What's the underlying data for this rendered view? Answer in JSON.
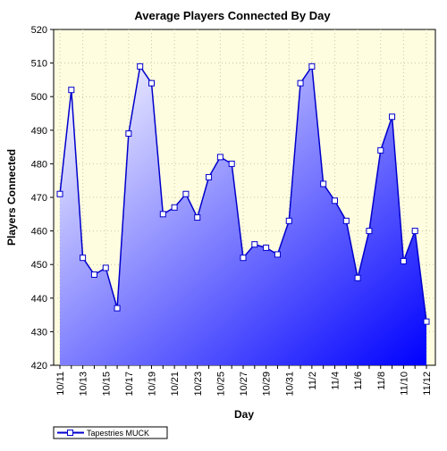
{
  "chart_data": {
    "type": "area",
    "title": "Average Players Connected By Day",
    "xlabel": "Day",
    "ylabel": "Players Connected",
    "ylim": [
      420,
      520
    ],
    "yticks": [
      420,
      430,
      440,
      450,
      460,
      470,
      480,
      490,
      500,
      510,
      520
    ],
    "x": [
      "10/11",
      "10/12",
      "10/13",
      "10/14",
      "10/15",
      "10/16",
      "10/17",
      "10/18",
      "10/19",
      "10/20",
      "10/21",
      "10/22",
      "10/23",
      "10/24",
      "10/25",
      "10/26",
      "10/27",
      "10/28",
      "10/29",
      "10/30",
      "10/31",
      "11/1",
      "11/2",
      "11/3",
      "11/4",
      "11/5",
      "11/6",
      "11/7",
      "11/8",
      "11/9",
      "11/10",
      "11/11",
      "11/12"
    ],
    "xtick_labels": [
      "10/11",
      "10/13",
      "10/15",
      "10/17",
      "10/19",
      "10/21",
      "10/23",
      "10/25",
      "10/27",
      "10/29",
      "10/31",
      "11/2",
      "11/4",
      "11/6",
      "11/8",
      "11/10",
      "11/12"
    ],
    "series": [
      {
        "name": "Tapestries MUCK",
        "values": [
          471,
          502,
          452,
          447,
          449,
          437,
          489,
          509,
          504,
          465,
          467,
          471,
          464,
          476,
          482,
          480,
          452,
          456,
          455,
          453,
          463,
          504,
          509,
          474,
          469,
          463,
          446,
          460,
          484,
          494,
          451,
          460,
          433
        ]
      }
    ],
    "grid": true,
    "legend": "bottom-left",
    "colors": {
      "plot_background": "#fffde0",
      "line": "#0000cc",
      "fill_light": "#ffffff",
      "fill_dark": "#0000ff",
      "marker_fill": "#ffffff",
      "grid": "#c8c8a0"
    }
  }
}
